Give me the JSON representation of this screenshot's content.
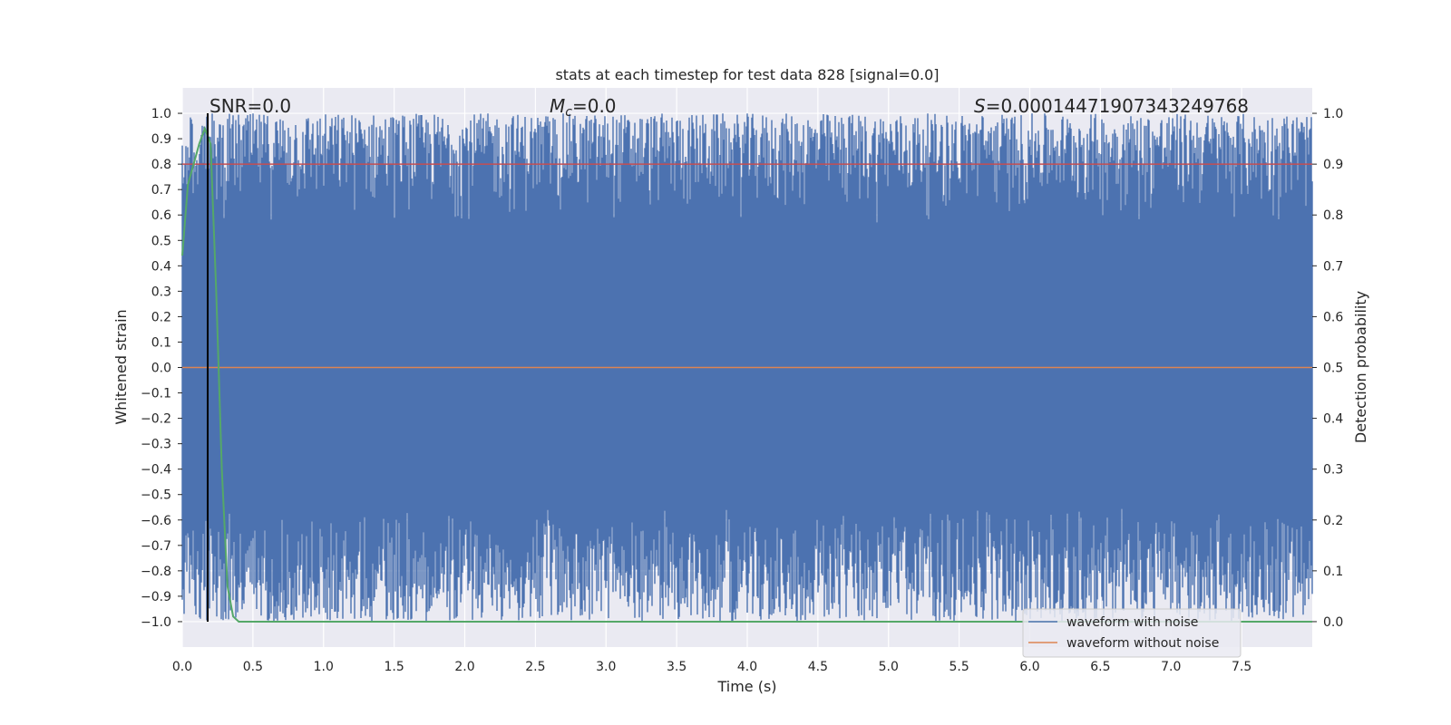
{
  "chart_data": {
    "type": "line",
    "title": "stats at each timestep for test data 828 [signal=0.0]",
    "xlabel": "Time (s)",
    "ylabel_left": "Whitened strain",
    "ylabel_right": "Detection probability",
    "xlim": [
      0.0,
      8.0
    ],
    "ylim_left": [
      -1.1,
      1.1
    ],
    "ylim_right": [
      -0.05,
      1.05
    ],
    "x_ticks": [
      "0.0",
      "0.5",
      "1.0",
      "1.5",
      "2.0",
      "2.5",
      "3.0",
      "3.5",
      "4.0",
      "4.5",
      "5.0",
      "5.5",
      "6.0",
      "6.5",
      "7.0",
      "7.5"
    ],
    "y_left_ticks": [
      "1.0",
      "0.9",
      "0.8",
      "0.7",
      "0.6",
      "0.5",
      "0.4",
      "0.3",
      "0.2",
      "0.1",
      "0.0",
      "−0.1",
      "−0.2",
      "−0.3",
      "−0.4",
      "−0.5",
      "−0.6",
      "−0.7",
      "−0.8",
      "−0.9",
      "−1.0"
    ],
    "y_right_ticks": [
      "1.0",
      "0.9",
      "0.8",
      "0.7",
      "0.6",
      "0.5",
      "0.4",
      "0.3",
      "0.2",
      "0.1",
      "0.0"
    ],
    "grid": true,
    "legend_position": "lower-right",
    "annotations": {
      "snr": "SNR=0.0",
      "mc_symbol": "M",
      "mc_sub": "c",
      "mc_value": "=0.0",
      "s_symbol": "S",
      "s_value": "=0.00014471907343249768"
    },
    "series": [
      {
        "name": "waveform with noise",
        "color": "#4c72b0",
        "description": "whitened strain noise filling the range -1.0 to 1.0 across 0 to 8 s"
      },
      {
        "name": "waveform without noise",
        "color": "#dd8452",
        "values_constant": 0.0
      },
      {
        "name": "detection probability",
        "color": "#55a868",
        "x": [
          0.0,
          0.04,
          0.08,
          0.12,
          0.16,
          0.2,
          0.24,
          0.28,
          0.32,
          0.36,
          0.4,
          1.0,
          2.0,
          3.0,
          4.0,
          5.0,
          6.0,
          7.0,
          8.0
        ],
        "values": [
          0.72,
          0.86,
          0.9,
          0.94,
          0.97,
          0.94,
          0.65,
          0.3,
          0.07,
          0.01,
          0.0,
          0.0,
          0.0,
          0.0,
          0.0,
          0.0,
          0.0,
          0.0,
          0.0
        ]
      }
    ],
    "threshold_line": {
      "value_right": 0.9,
      "color": "#c44e52"
    },
    "marker_line": {
      "x": 0.18,
      "color": "#000000"
    }
  }
}
